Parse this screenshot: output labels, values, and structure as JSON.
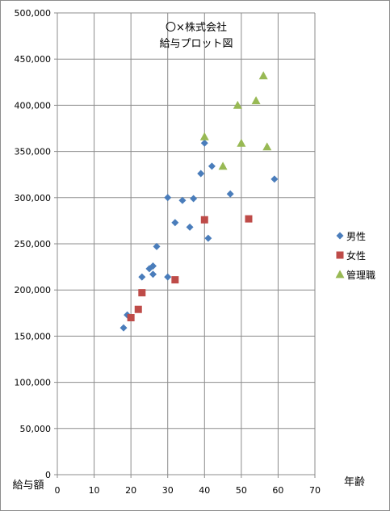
{
  "chart_data": {
    "type": "scatter",
    "title_lines": [
      "〇×株式会社",
      "給与プロット図"
    ],
    "xlabel": "年齢",
    "ylabel": "給与額",
    "xlim": [
      0,
      70
    ],
    "ylim": [
      0,
      500000
    ],
    "x_ticks": [
      0,
      10,
      20,
      30,
      40,
      50,
      60,
      70
    ],
    "y_ticks": [
      0,
      50000,
      100000,
      150000,
      200000,
      250000,
      300000,
      350000,
      400000,
      450000,
      500000
    ],
    "y_tick_labels": [
      "0",
      "50,000",
      "100,000",
      "150,000",
      "200,000",
      "250,000",
      "300,000",
      "350,000",
      "400,000",
      "450,000",
      "500,000"
    ],
    "grid": true,
    "legend_position": "right",
    "series": [
      {
        "name": "男性",
        "marker": "diamond",
        "color": "#4a7dbb",
        "points": [
          [
            18,
            159000
          ],
          [
            19,
            173000
          ],
          [
            23,
            214000
          ],
          [
            25,
            223000
          ],
          [
            26,
            226000
          ],
          [
            26,
            217000
          ],
          [
            27,
            247000
          ],
          [
            30,
            300000
          ],
          [
            30,
            214000
          ],
          [
            32,
            273000
          ],
          [
            34,
            297000
          ],
          [
            36,
            268000
          ],
          [
            37,
            299000
          ],
          [
            39,
            326000
          ],
          [
            40,
            359000
          ],
          [
            41,
            256000
          ],
          [
            42,
            334000
          ],
          [
            47,
            304000
          ],
          [
            59,
            320000
          ]
        ]
      },
      {
        "name": "女性",
        "marker": "square",
        "color": "#be4b48",
        "points": [
          [
            20,
            170000
          ],
          [
            22,
            179000
          ],
          [
            23,
            197000
          ],
          [
            32,
            211000
          ],
          [
            40,
            276000
          ],
          [
            52,
            277000
          ]
        ]
      },
      {
        "name": "管理職",
        "marker": "triangle",
        "color": "#98b954",
        "points": [
          [
            40,
            366000
          ],
          [
            45,
            334000
          ],
          [
            49,
            400000
          ],
          [
            50,
            359000
          ],
          [
            54,
            405000
          ],
          [
            56,
            432000
          ],
          [
            57,
            355000
          ]
        ]
      }
    ]
  }
}
